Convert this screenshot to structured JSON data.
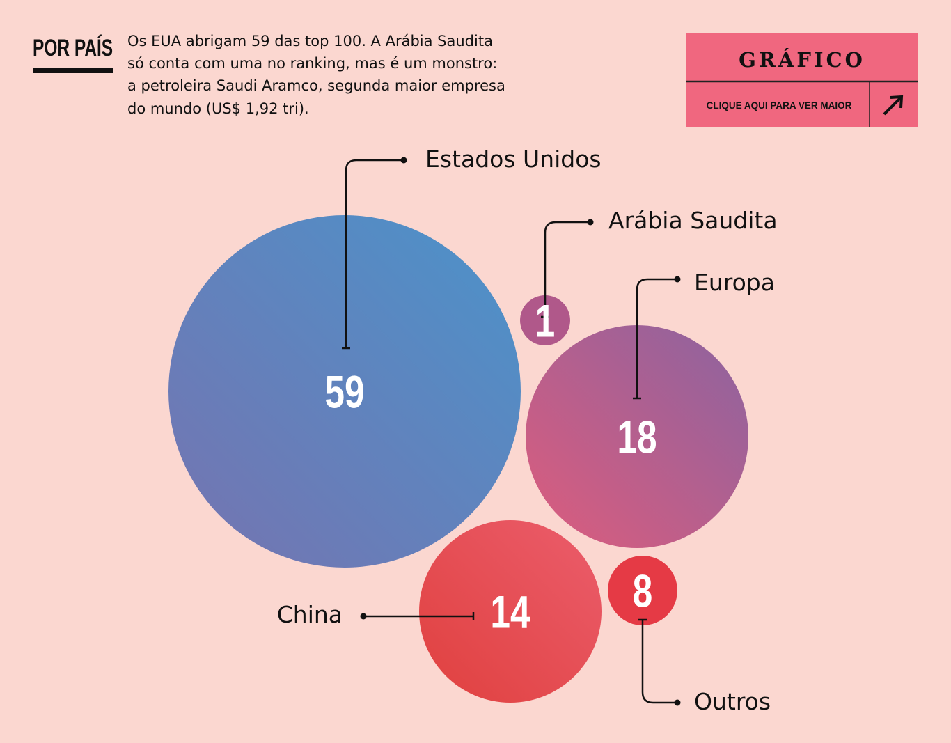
{
  "header": {
    "tag": "POR PAÍS",
    "text": [
      "Os EUA abrigam 59 das top 100. A Arábia Saudita",
      "só conta com uma no ranking, mas é um monstro:",
      "a petroleira Saudi Aramco, segunda maior empresa",
      "do mundo (US$ 1,92 tri)."
    ]
  },
  "button": {
    "title": "GRÁFICO",
    "link": "CLIQUE AQUI PARA VER MAIOR"
  },
  "chart_data": {
    "type": "bubble",
    "categories": [
      "Estados Unidos",
      "Arábia Saudita",
      "Europa",
      "China",
      "Outros"
    ],
    "values": [
      59,
      1,
      18,
      14,
      8
    ],
    "colors": [
      [
        "#7673b0",
        "#4b93ca"
      ],
      [
        "#b0588a",
        "#b0588a"
      ],
      [
        "#de5c7c",
        "#8b63a0"
      ],
      [
        "#e0403e",
        "#eb5d6c"
      ],
      [
        "#e53a45",
        "#e53a45"
      ]
    ]
  }
}
